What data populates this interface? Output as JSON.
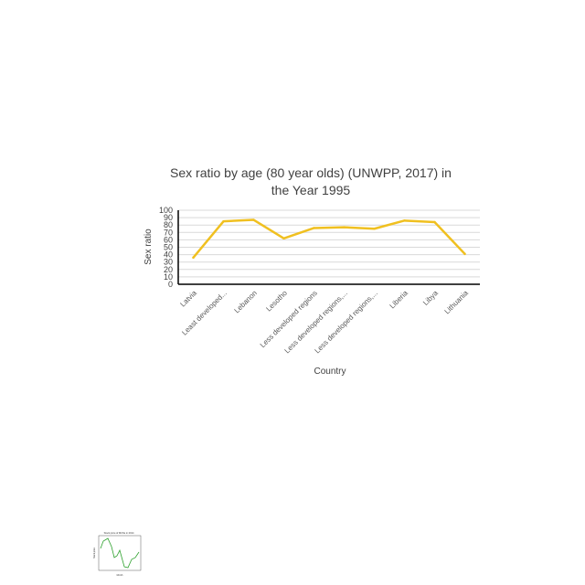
{
  "chart_data": {
    "type": "line",
    "title_lines": [
      "Sex ratio by age (80 year olds) (UNWPP, 2017) in",
      "the Year 1995"
    ],
    "xlabel": "Country",
    "ylabel": "Sex ratio",
    "ylim": [
      0,
      100
    ],
    "yticks": [
      0,
      10,
      20,
      30,
      40,
      50,
      60,
      70,
      80,
      90,
      100
    ],
    "grid": true,
    "categories": [
      "Latvia",
      "Least developed...",
      "Lebanon",
      "Lesotho",
      "Less developed regions",
      "Less developed regions,...",
      "Less developed regions,...",
      "Liberia",
      "Libya",
      "Lithuania"
    ],
    "series": [
      {
        "values": [
          36,
          85,
          87,
          62,
          76,
          77,
          75,
          86,
          84,
          41
        ],
        "color": "#f0c020"
      }
    ]
  },
  "thumbnail": {
    "title": "Stock price of MCNs in 2014",
    "xlabel": "Month",
    "ylabel": "Stock price",
    "line_color": "#2ca02c"
  }
}
